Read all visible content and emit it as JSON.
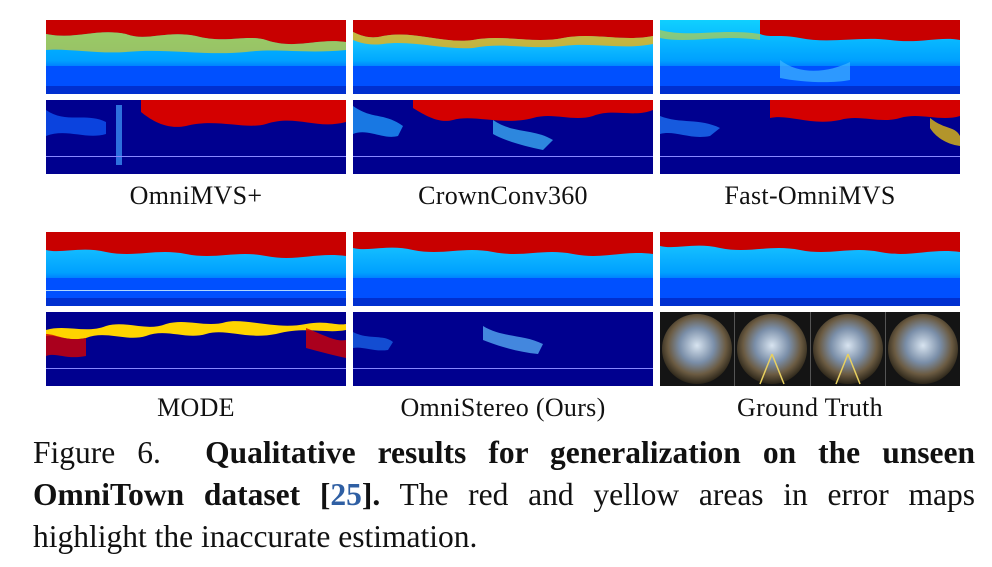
{
  "figure": {
    "panels": [
      {
        "label": "OmniMVS+"
      },
      {
        "label": "CrownConv360"
      },
      {
        "label": "Fast-OmniMVS"
      },
      {
        "label": "MODE"
      },
      {
        "label": "OmniStereo (Ours)"
      },
      {
        "label": "Ground Truth"
      }
    ],
    "colors": {
      "far": "#c80000",
      "mid": "#00aaff",
      "near": "#0050ff",
      "error_bg": "#00008f",
      "error_hi": "#d40000",
      "error_yellow": "#ffd000"
    }
  },
  "caption": {
    "prefix": "Figure 6.",
    "bold_text": "Qualitative results for generalization on the unseen OmniTown dataset [",
    "ref": "25",
    "bold_close": "].",
    "rest": "The red and yellow areas in error maps highlight the inaccurate estimation."
  }
}
